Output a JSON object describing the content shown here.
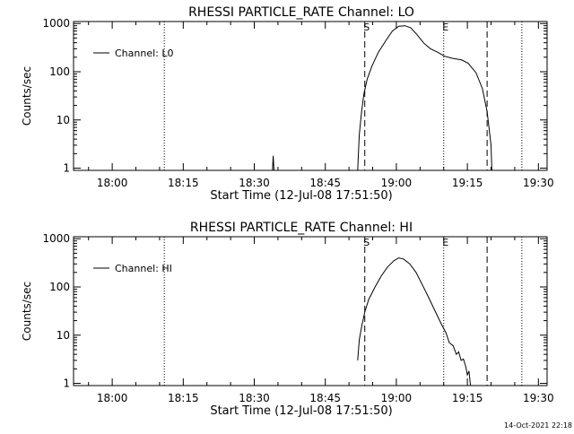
{
  "footer_timestamp": "14-Oct-2021 22:18",
  "chart_data": [
    {
      "type": "line",
      "title": "RHESSI PARTICLE_RATE Channel: LO",
      "xlabel": "Start Time (12-Jul-08 17:51:50)",
      "ylabel": "Counts/sec",
      "yscale": "log",
      "ylim": [
        0.9,
        1100
      ],
      "xlim": [
        "17:51:50",
        "19:31:50"
      ],
      "x_ticks": [
        "18:00",
        "18:15",
        "18:30",
        "18:45",
        "19:00",
        "19:15",
        "19:30"
      ],
      "y_ticks": [
        "1",
        "10",
        "100",
        "1000"
      ],
      "legend": {
        "position": "top-left",
        "entries": [
          "Channel: L0"
        ]
      },
      "markers": [
        {
          "time": "18:11:00",
          "style": "dotted",
          "label": ""
        },
        {
          "time": "18:53:20",
          "style": "dashed",
          "label": "S"
        },
        {
          "time": "19:10:00",
          "style": "dotted",
          "label": "E"
        },
        {
          "time": "19:19:10",
          "style": "dashed",
          "label": ""
        },
        {
          "time": "19:26:30",
          "style": "dotted",
          "label": ""
        }
      ],
      "series": [
        {
          "name": "Channel: L0",
          "points": [
            [
              "18:33:50",
              0.9
            ],
            [
              "18:34:00",
              1.8
            ],
            [
              "18:34:10",
              0.9
            ],
            [
              "18:51:50",
              0.9
            ],
            [
              "18:52:10",
              5
            ],
            [
              "18:52:40",
              15
            ],
            [
              "18:53:10",
              35
            ],
            [
              "18:53:50",
              70
            ],
            [
              "18:54:50",
              130
            ],
            [
              "18:56:10",
              250
            ],
            [
              "18:57:50",
              450
            ],
            [
              "18:59:10",
              700
            ],
            [
              "19:00:30",
              880
            ],
            [
              "19:01:50",
              900
            ],
            [
              "19:03:00",
              820
            ],
            [
              "19:04:10",
              620
            ],
            [
              "19:05:50",
              390
            ],
            [
              "19:07:10",
              300
            ],
            [
              "19:08:50",
              250
            ],
            [
              "19:10:10",
              210
            ],
            [
              "19:11:50",
              190
            ],
            [
              "19:13:50",
              175
            ],
            [
              "19:15:10",
              150
            ],
            [
              "19:16:50",
              95
            ],
            [
              "19:18:10",
              45
            ],
            [
              "19:19:10",
              15
            ],
            [
              "19:20:00",
              3
            ],
            [
              "19:20:10",
              0.9
            ]
          ]
        }
      ]
    },
    {
      "type": "line",
      "title": "RHESSI PARTICLE_RATE Channel: HI",
      "xlabel": "Start Time (12-Jul-08 17:51:50)",
      "ylabel": "Counts/sec",
      "yscale": "log",
      "ylim": [
        0.9,
        1100
      ],
      "xlim": [
        "17:51:50",
        "19:31:50"
      ],
      "x_ticks": [
        "18:00",
        "18:15",
        "18:30",
        "18:45",
        "19:00",
        "19:15",
        "19:30"
      ],
      "y_ticks": [
        "1",
        "10",
        "100",
        "1000"
      ],
      "legend": {
        "position": "top-left",
        "entries": [
          "Channel: HI"
        ]
      },
      "markers": [
        {
          "time": "18:11:00",
          "style": "dotted",
          "label": ""
        },
        {
          "time": "18:53:20",
          "style": "dashed",
          "label": "S"
        },
        {
          "time": "19:10:00",
          "style": "dotted",
          "label": "E"
        },
        {
          "time": "19:19:10",
          "style": "dashed",
          "label": ""
        },
        {
          "time": "19:26:30",
          "style": "dotted",
          "label": ""
        }
      ],
      "series": [
        {
          "name": "Channel: HI",
          "points": [
            [
              "18:51:50",
              3
            ],
            [
              "18:52:10",
              8
            ],
            [
              "18:52:40",
              15
            ],
            [
              "18:53:20",
              30
            ],
            [
              "18:54:10",
              55
            ],
            [
              "18:55:30",
              100
            ],
            [
              "18:56:50",
              170
            ],
            [
              "18:58:10",
              260
            ],
            [
              "18:59:30",
              350
            ],
            [
              "19:00:30",
              400
            ],
            [
              "19:01:30",
              380
            ],
            [
              "19:02:50",
              300
            ],
            [
              "19:04:10",
              200
            ],
            [
              "19:05:30",
              110
            ],
            [
              "19:06:50",
              60
            ],
            [
              "19:08:10",
              32
            ],
            [
              "19:09:30",
              17
            ],
            [
              "19:10:30",
              11
            ],
            [
              "19:11:10",
              7
            ],
            [
              "19:12:00",
              6
            ],
            [
              "19:12:40",
              4
            ],
            [
              "19:13:10",
              4.5
            ],
            [
              "19:13:40",
              3
            ],
            [
              "19:14:10",
              3.2
            ],
            [
              "19:14:40",
              2.2
            ],
            [
              "19:15:00",
              1.5
            ],
            [
              "19:15:20",
              1.8
            ],
            [
              "19:15:40",
              0.9
            ]
          ]
        }
      ]
    }
  ]
}
